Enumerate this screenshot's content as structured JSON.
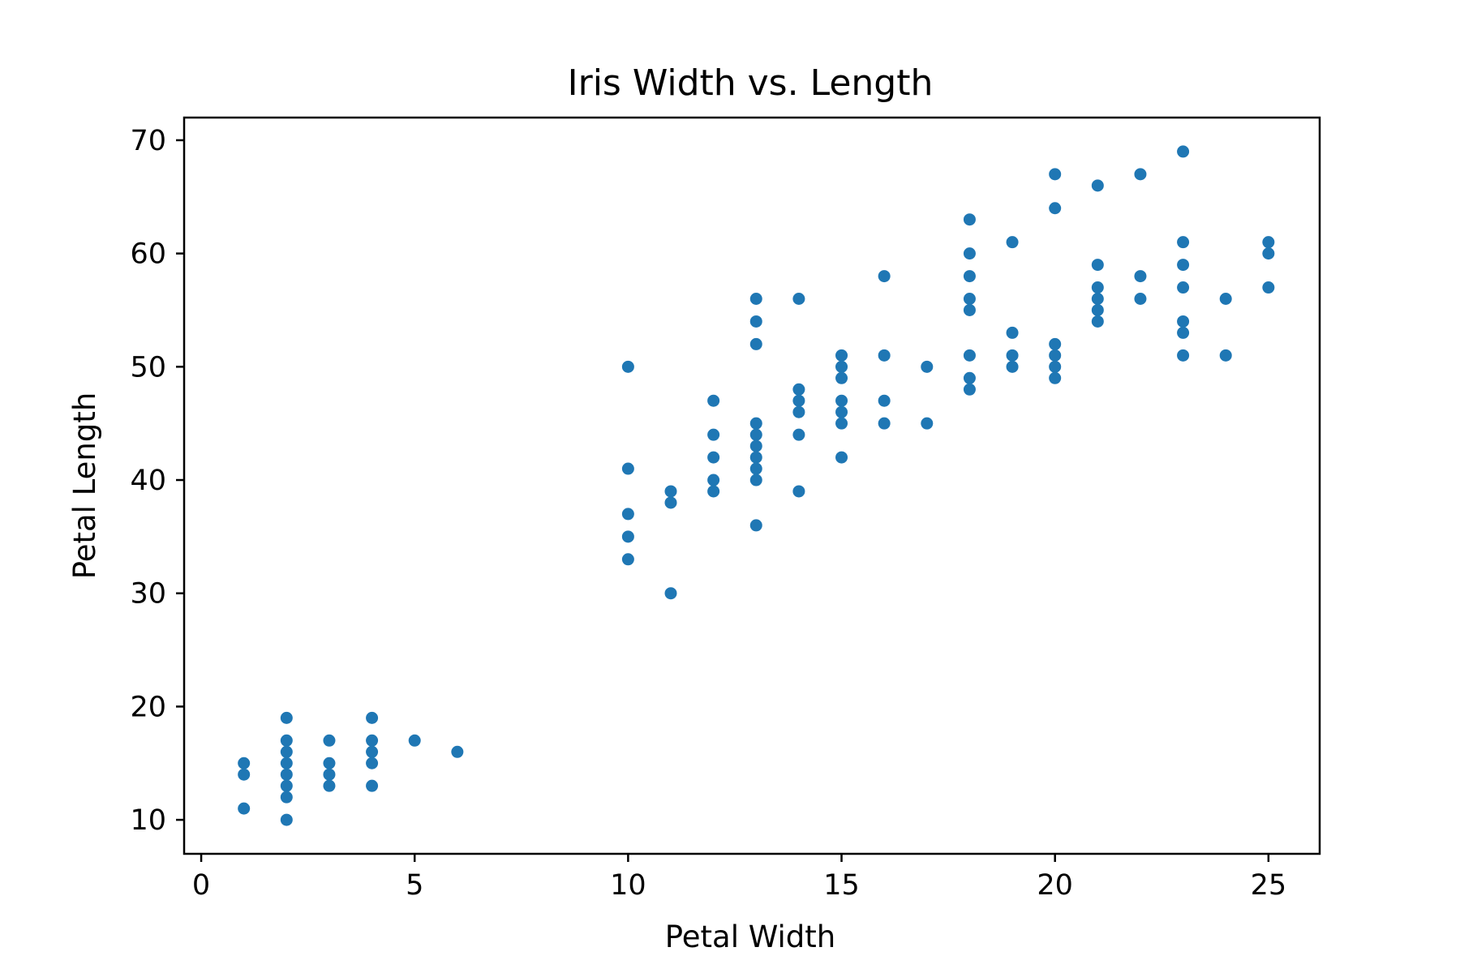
{
  "chart_data": {
    "type": "scatter",
    "title": "Iris Width vs. Length",
    "xlabel": "Petal Width",
    "ylabel": "Petal Length",
    "xlim": [
      -0.4,
      26.2
    ],
    "ylim": [
      7,
      72
    ],
    "x_ticks": [
      0,
      5,
      10,
      15,
      20,
      25
    ],
    "y_ticks": [
      10,
      20,
      30,
      40,
      50,
      60,
      70
    ],
    "grid": false,
    "legend": "none",
    "marker_color": "#1f77b4",
    "points": [
      [
        1,
        15
      ],
      [
        1,
        14
      ],
      [
        1,
        11
      ],
      [
        2,
        19
      ],
      [
        2,
        17
      ],
      [
        2,
        16
      ],
      [
        2,
        15
      ],
      [
        2,
        14
      ],
      [
        2,
        13
      ],
      [
        2,
        12
      ],
      [
        2,
        10
      ],
      [
        3,
        17
      ],
      [
        3,
        15
      ],
      [
        3,
        14
      ],
      [
        3,
        13
      ],
      [
        4,
        19
      ],
      [
        4,
        17
      ],
      [
        4,
        16
      ],
      [
        4,
        15
      ],
      [
        4,
        13
      ],
      [
        5,
        17
      ],
      [
        6,
        16
      ],
      [
        10,
        50
      ],
      [
        10,
        41
      ],
      [
        10,
        37
      ],
      [
        10,
        35
      ],
      [
        10,
        33
      ],
      [
        11,
        39
      ],
      [
        11,
        38
      ],
      [
        11,
        30
      ],
      [
        12,
        47
      ],
      [
        12,
        44
      ],
      [
        12,
        42
      ],
      [
        12,
        40
      ],
      [
        12,
        39
      ],
      [
        13,
        56
      ],
      [
        13,
        54
      ],
      [
        13,
        52
      ],
      [
        13,
        45
      ],
      [
        13,
        44
      ],
      [
        13,
        43
      ],
      [
        13,
        42
      ],
      [
        13,
        41
      ],
      [
        13,
        40
      ],
      [
        13,
        36
      ],
      [
        14,
        56
      ],
      [
        14,
        48
      ],
      [
        14,
        47
      ],
      [
        14,
        46
      ],
      [
        14,
        44
      ],
      [
        14,
        39
      ],
      [
        15,
        51
      ],
      [
        15,
        50
      ],
      [
        15,
        49
      ],
      [
        15,
        47
      ],
      [
        15,
        46
      ],
      [
        15,
        45
      ],
      [
        15,
        42
      ],
      [
        16,
        58
      ],
      [
        16,
        51
      ],
      [
        16,
        47
      ],
      [
        16,
        45
      ],
      [
        17,
        50
      ],
      [
        17,
        45
      ],
      [
        18,
        63
      ],
      [
        18,
        60
      ],
      [
        18,
        58
      ],
      [
        18,
        56
      ],
      [
        18,
        55
      ],
      [
        18,
        51
      ],
      [
        18,
        49
      ],
      [
        18,
        48
      ],
      [
        19,
        61
      ],
      [
        19,
        53
      ],
      [
        19,
        51
      ],
      [
        19,
        50
      ],
      [
        20,
        67
      ],
      [
        20,
        64
      ],
      [
        20,
        52
      ],
      [
        20,
        51
      ],
      [
        20,
        50
      ],
      [
        20,
        49
      ],
      [
        21,
        66
      ],
      [
        21,
        59
      ],
      [
        21,
        57
      ],
      [
        21,
        56
      ],
      [
        21,
        55
      ],
      [
        21,
        54
      ],
      [
        22,
        67
      ],
      [
        22,
        58
      ],
      [
        22,
        56
      ],
      [
        23,
        69
      ],
      [
        23,
        61
      ],
      [
        23,
        59
      ],
      [
        23,
        57
      ],
      [
        23,
        54
      ],
      [
        23,
        53
      ],
      [
        23,
        51
      ],
      [
        24,
        56
      ],
      [
        24,
        51
      ],
      [
        25,
        61
      ],
      [
        25,
        60
      ],
      [
        25,
        57
      ]
    ]
  }
}
